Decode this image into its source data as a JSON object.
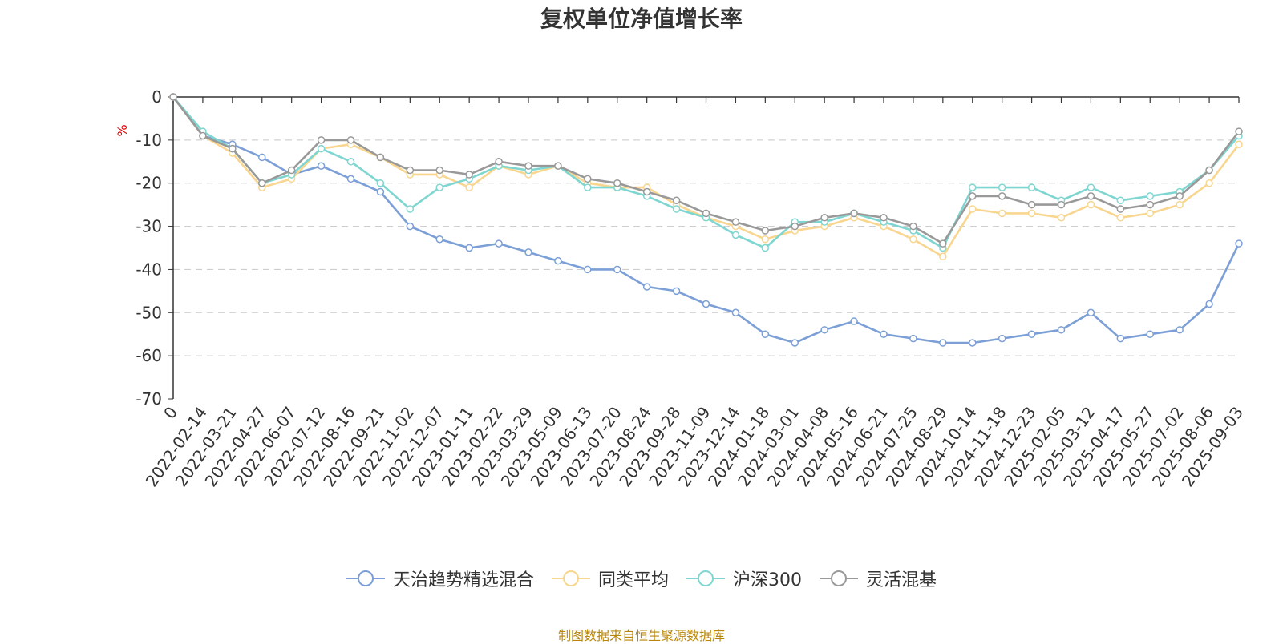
{
  "chart_data": {
    "type": "line",
    "title": "复权单位净值增长率",
    "ylabel": "%",
    "ylim": [
      -70,
      0
    ],
    "yticks": [
      0,
      -10,
      -20,
      -30,
      -40,
      -50,
      -60,
      -70
    ],
    "grid": true,
    "legend_position": "bottom-center",
    "x": [
      "0",
      "2022-02-14",
      "2022-03-21",
      "2022-04-27",
      "2022-06-07",
      "2022-07-12",
      "2022-08-16",
      "2022-09-21",
      "2022-11-02",
      "2022-12-07",
      "2023-01-11",
      "2023-02-22",
      "2023-03-29",
      "2023-05-09",
      "2023-06-13",
      "2023-07-20",
      "2023-08-24",
      "2023-09-28",
      "2023-11-09",
      "2023-12-14",
      "2024-01-18",
      "2024-03-01",
      "2024-04-08",
      "2024-05-16",
      "2024-06-21",
      "2024-07-25",
      "2024-08-29",
      "2024-10-14",
      "2024-11-18",
      "2024-12-23",
      "2025-02-05",
      "2025-03-12",
      "2025-04-17",
      "2025-05-27",
      "2025-07-02",
      "2025-08-06",
      "2025-09-03"
    ],
    "series": [
      {
        "name": "天治趋势精选混合",
        "color": "#7b9fd6",
        "values": [
          0,
          -9,
          -11,
          -14,
          -18,
          -16,
          -19,
          -22,
          -30,
          -33,
          -35,
          -34,
          -36,
          -38,
          -40,
          -40,
          -44,
          -45,
          -48,
          -50,
          -55,
          -57,
          -54,
          -52,
          -55,
          -56,
          -57,
          -57,
          -56,
          -55,
          -54,
          -50,
          -56,
          -55,
          -54,
          -48,
          -34
        ]
      },
      {
        "name": "同类平均",
        "color": "#f9d68f",
        "values": [
          0,
          -9,
          -13,
          -21,
          -19,
          -12,
          -11,
          -14,
          -18,
          -18,
          -21,
          -16,
          -18,
          -16,
          -20,
          -21,
          -21,
          -25,
          -28,
          -30,
          -33,
          -31,
          -30,
          -28,
          -30,
          -33,
          -37,
          -26,
          -27,
          -27,
          -28,
          -25,
          -28,
          -27,
          -25,
          -20,
          -11
        ]
      },
      {
        "name": "沪深300",
        "color": "#7fd6d0",
        "values": [
          0,
          -8,
          -12,
          -20,
          -18,
          -12,
          -15,
          -20,
          -26,
          -21,
          -19,
          -16,
          -17,
          -16,
          -21,
          -21,
          -23,
          -26,
          -28,
          -32,
          -35,
          -29,
          -29,
          -27,
          -29,
          -31,
          -35,
          -21,
          -21,
          -21,
          -24,
          -21,
          -24,
          -23,
          -22,
          -17,
          -9
        ]
      },
      {
        "name": "灵活混基",
        "color": "#999999",
        "values": [
          0,
          -9,
          -12,
          -20,
          -17,
          -10,
          -10,
          -14,
          -17,
          -17,
          -18,
          -15,
          -16,
          -16,
          -19,
          -20,
          -22,
          -24,
          -27,
          -29,
          -31,
          -30,
          -28,
          -27,
          -28,
          -30,
          -34,
          -23,
          -23,
          -25,
          -25,
          -23,
          -26,
          -25,
          -23,
          -17,
          -8
        ]
      }
    ]
  },
  "footer": {
    "source": "制图数据来自恒生聚源数据库"
  }
}
